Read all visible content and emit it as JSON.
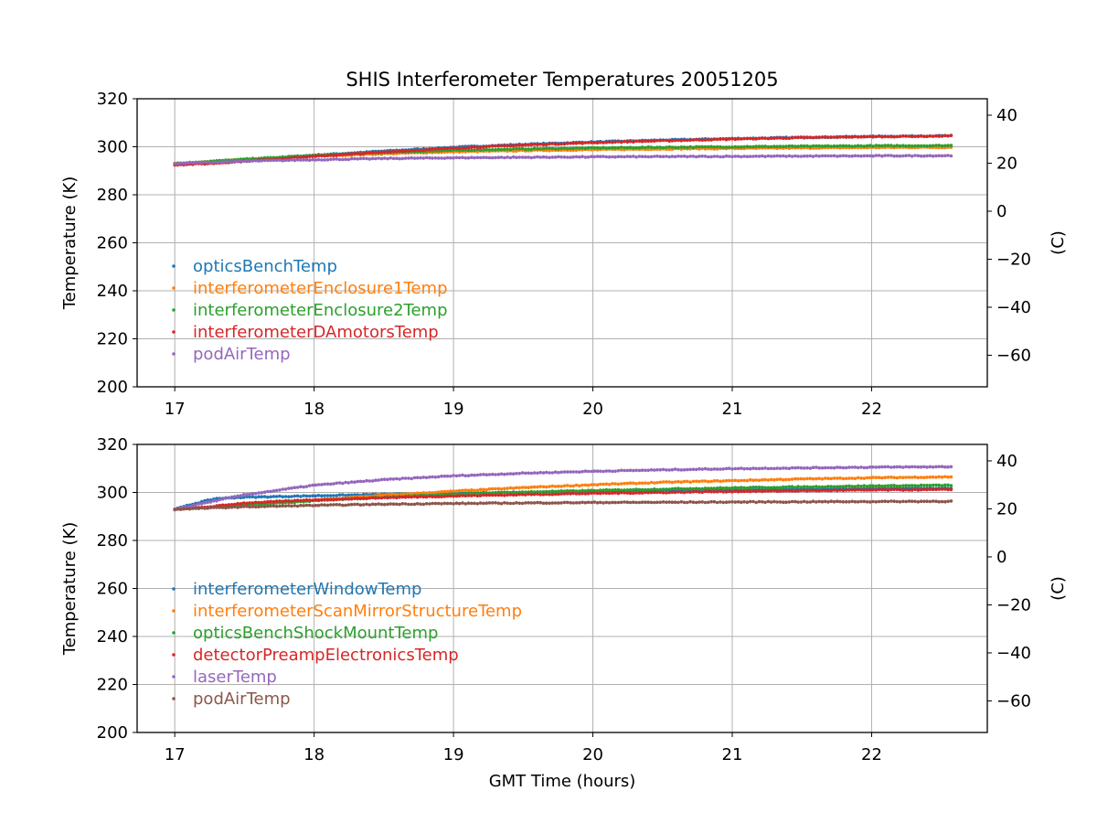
{
  "figure": {
    "title": "SHIS Interferometer Temperatures 20051205",
    "xlabel": "GMT Time (hours)"
  },
  "chart_data": [
    {
      "type": "scatter",
      "title": "SHIS Interferometer Temperatures 20051205",
      "xlabel": "",
      "ylabel": "Temperature (K)",
      "ylabel_right": "(C)",
      "xlim": [
        16.73,
        22.83
      ],
      "ylim": [
        200,
        320
      ],
      "ylim_right_c": [
        -73.15,
        46.85
      ],
      "xticks": [
        17,
        18,
        19,
        20,
        21,
        22
      ],
      "yticks": [
        200,
        220,
        240,
        260,
        280,
        300,
        320
      ],
      "yticks_right": [
        -60,
        -40,
        -20,
        0,
        20,
        40
      ],
      "grid": true,
      "legend_position": "center-left",
      "series": [
        {
          "name": "opticsBenchTemp",
          "color": "#1f77b4",
          "x": [
            17.0,
            17.25,
            17.5,
            18.0,
            18.5,
            19.0,
            19.5,
            20.0,
            20.5,
            21.0,
            21.5,
            22.0,
            22.57
          ],
          "y": [
            293.0,
            293.7,
            294.6,
            296.5,
            298.2,
            299.8,
            301.0,
            302.0,
            302.8,
            303.4,
            303.9,
            304.3,
            304.6
          ]
        },
        {
          "name": "interferometerEnclosure1Temp",
          "color": "#ff7f0e",
          "x": [
            17.0,
            17.25,
            17.5,
            18.0,
            18.5,
            19.0,
            19.5,
            20.0,
            20.5,
            21.0,
            21.5,
            22.0,
            22.57
          ],
          "y": [
            293.0,
            293.8,
            294.6,
            296.0,
            297.1,
            297.9,
            298.4,
            298.8,
            299.1,
            299.3,
            299.5,
            299.7,
            299.8
          ]
        },
        {
          "name": "interferometerEnclosure2Temp",
          "color": "#2ca02c",
          "x": [
            17.0,
            17.25,
            17.5,
            18.0,
            18.5,
            19.0,
            19.5,
            20.0,
            20.5,
            21.0,
            21.5,
            22.0,
            22.57
          ],
          "y": [
            293.0,
            293.9,
            294.8,
            296.4,
            297.6,
            298.5,
            299.1,
            299.5,
            299.8,
            300.0,
            300.2,
            300.4,
            300.5
          ]
        },
        {
          "name": "interferometerDAmotorsTemp",
          "color": "#d62728",
          "x": [
            17.0,
            17.25,
            17.5,
            18.0,
            18.5,
            19.0,
            19.5,
            20.0,
            20.5,
            21.0,
            21.5,
            22.0,
            22.57
          ],
          "y": [
            292.5,
            293.0,
            294.0,
            296.0,
            297.8,
            299.4,
            300.7,
            301.7,
            302.5,
            303.2,
            303.8,
            304.2,
            304.5
          ]
        },
        {
          "name": "podAirTemp",
          "color": "#9467bd",
          "x": [
            17.0,
            17.25,
            17.5,
            18.0,
            18.5,
            19.0,
            19.5,
            20.0,
            20.5,
            21.0,
            21.5,
            22.0,
            22.57
          ],
          "y": [
            293.0,
            293.5,
            294.0,
            294.6,
            295.1,
            295.4,
            295.6,
            295.8,
            295.9,
            296.0,
            296.1,
            296.2,
            296.3
          ]
        }
      ]
    },
    {
      "type": "scatter",
      "title": "",
      "xlabel": "GMT Time (hours)",
      "ylabel": "Temperature (K)",
      "ylabel_right": "(C)",
      "xlim": [
        16.73,
        22.83
      ],
      "ylim": [
        200,
        320
      ],
      "ylim_right_c": [
        -73.15,
        46.85
      ],
      "xticks": [
        17,
        18,
        19,
        20,
        21,
        22
      ],
      "yticks": [
        200,
        220,
        240,
        260,
        280,
        300,
        320
      ],
      "yticks_right": [
        -60,
        -40,
        -20,
        0,
        20,
        40
      ],
      "grid": true,
      "legend_position": "lower-left",
      "series": [
        {
          "name": "interferometerWindowTemp",
          "color": "#1f77b4",
          "x": [
            17.0,
            17.15,
            17.3,
            17.5,
            18.0,
            18.5,
            19.0,
            19.5,
            20.0,
            20.5,
            21.0,
            21.5,
            22.0,
            22.57
          ],
          "y": [
            293.0,
            295.5,
            297.5,
            298.0,
            298.6,
            299.2,
            299.7,
            300.1,
            300.5,
            300.8,
            301.1,
            301.4,
            301.6,
            301.8
          ]
        },
        {
          "name": "interferometerScanMirrorStructureTemp",
          "color": "#ff7f0e",
          "x": [
            17.0,
            17.25,
            17.5,
            18.0,
            18.5,
            19.0,
            19.5,
            20.0,
            20.5,
            21.0,
            21.5,
            22.0,
            22.57
          ],
          "y": [
            293.0,
            293.8,
            294.8,
            296.8,
            298.8,
            300.5,
            302.0,
            303.2,
            304.2,
            304.9,
            305.6,
            306.1,
            306.5
          ]
        },
        {
          "name": "opticsBenchShockMountTemp",
          "color": "#2ca02c",
          "x": [
            17.0,
            17.25,
            17.5,
            18.0,
            18.5,
            19.0,
            19.5,
            20.0,
            20.5,
            21.0,
            21.5,
            22.0,
            22.57
          ],
          "y": [
            293.0,
            293.8,
            294.7,
            296.5,
            298.0,
            299.2,
            300.1,
            300.8,
            301.4,
            301.9,
            302.3,
            302.7,
            303.0
          ]
        },
        {
          "name": "detectorPreampElectronicsTemp",
          "color": "#d62728",
          "x": [
            17.0,
            17.25,
            17.5,
            18.0,
            18.5,
            19.0,
            19.5,
            20.0,
            20.5,
            21.0,
            21.5,
            22.0,
            22.57
          ],
          "y": [
            292.8,
            294.0,
            295.6,
            296.9,
            297.8,
            298.5,
            299.1,
            299.6,
            300.0,
            300.4,
            300.7,
            301.0,
            301.2
          ]
        },
        {
          "name": "laserTemp",
          "color": "#9467bd",
          "x": [
            17.0,
            17.25,
            17.5,
            18.0,
            18.5,
            19.0,
            19.5,
            20.0,
            20.5,
            21.0,
            21.5,
            22.0,
            22.57
          ],
          "y": [
            293.0,
            296.0,
            299.0,
            303.0,
            305.3,
            306.9,
            308.0,
            308.8,
            309.4,
            309.9,
            310.2,
            310.5,
            310.7
          ]
        },
        {
          "name": "podAirTemp",
          "color": "#8c564b",
          "x": [
            17.0,
            17.25,
            17.5,
            18.0,
            18.5,
            19.0,
            19.5,
            20.0,
            20.5,
            21.0,
            21.5,
            22.0,
            22.57
          ],
          "y": [
            293.0,
            293.5,
            294.0,
            294.6,
            295.1,
            295.4,
            295.6,
            295.8,
            295.9,
            296.0,
            296.1,
            296.2,
            296.3
          ]
        }
      ]
    }
  ]
}
